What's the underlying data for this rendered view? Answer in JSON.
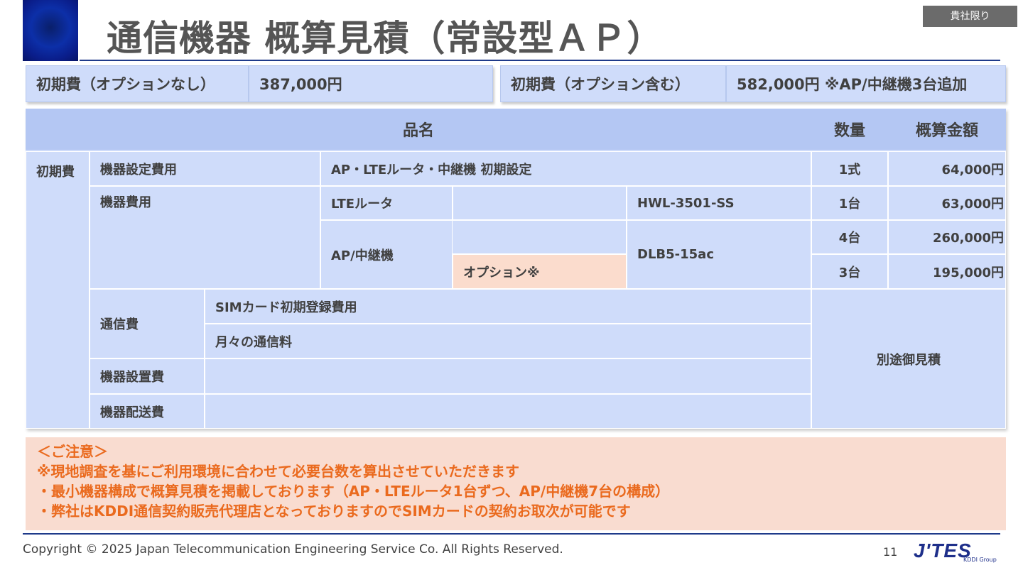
{
  "title": "通信機器 概算見積（常設型ＡＰ）",
  "badge": "貴社限り",
  "summary": [
    {
      "label": "初期費（オプションなし）",
      "value": "387,000円"
    },
    {
      "label": "初期費（オプション含む）",
      "value": "582,000円 ※AP/中継機3台追加"
    }
  ],
  "table": {
    "headers": {
      "name": "品名",
      "qty": "数量",
      "amount": "概算金額"
    },
    "category": "初期費",
    "rows": {
      "setup": {
        "label": "機器設定費用",
        "desc": "AP・LTEルータ・中継機 初期設定",
        "qty": "1式",
        "amount": "64,000円"
      },
      "equipment": {
        "label": "機器費用",
        "lte": {
          "name": "LTEルータ",
          "model": "HWL-3501-SS",
          "qty": "1台",
          "amount": "63,000円"
        },
        "ap": {
          "name": "AP/中継機",
          "option": "オプション※",
          "model": "DLB5-15ac",
          "qty": "4台",
          "amount": "260,000円",
          "option_qty": "3台",
          "option_amount": "195,000円"
        }
      },
      "comm": {
        "label": "通信費",
        "items": [
          "SIMカード初期登録費用",
          "月々の通信料"
        ]
      },
      "install": {
        "label": "機器設置費"
      },
      "delivery": {
        "label": "機器配送費"
      },
      "separate": "別途御見積"
    }
  },
  "notice": {
    "heading": "＜ご注意＞",
    "lines": [
      "※現地調査を基にご利用環境に合わせて必要台数を算出させていただきます",
      "・最小機器構成で概算見積を掲載しております（AP・LTEルータ1台ずつ、AP/中継機7台の構成）",
      "・弊社はKDDI通信契約販売代理店となっておりますのでSIMカードの契約お取次が可能です"
    ]
  },
  "footer": {
    "copyright": "Copyright © 2025 Japan Telecommunication Engineering Service Co. All Rights Reserved.",
    "page": "11",
    "logo": "J'TES",
    "logo_sub": "KDDI Group"
  },
  "colors": {
    "accent": "#1e3a8a",
    "cell": "#cfdcfa",
    "header": "#b4c7f3",
    "option": "#fbdccd",
    "notice_bg": "#f9dcd0",
    "notice_text": "#ea6a1e"
  }
}
